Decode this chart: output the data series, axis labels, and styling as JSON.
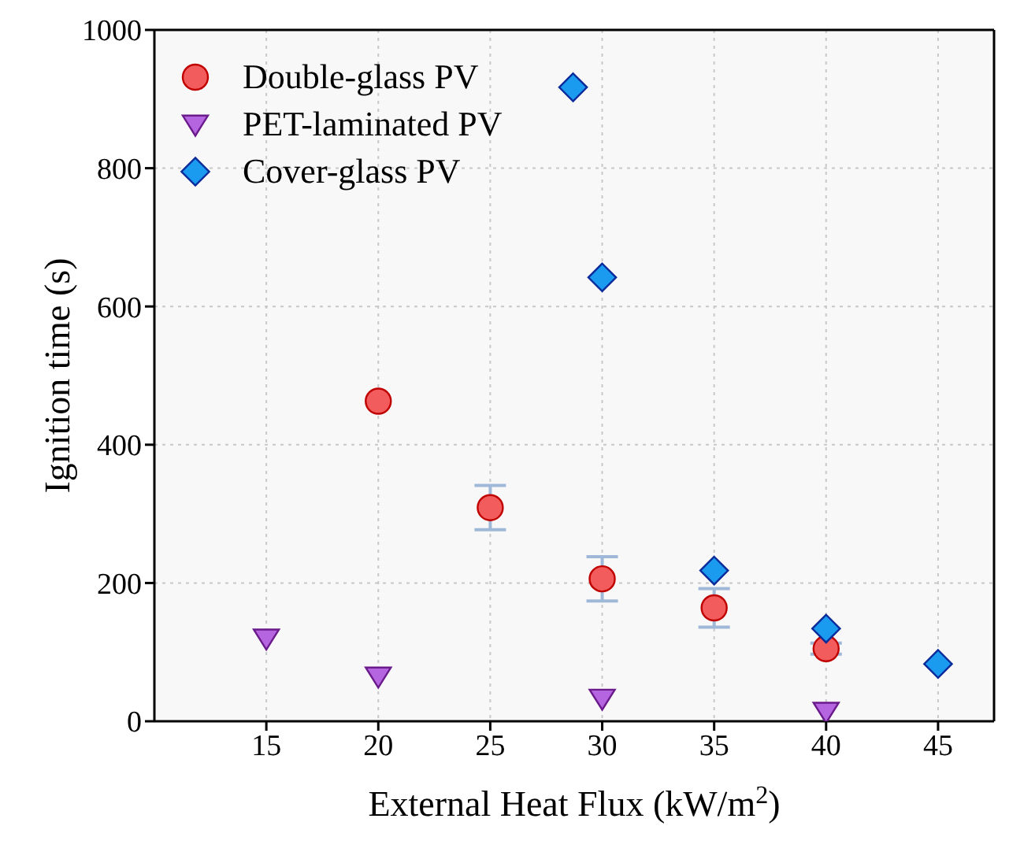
{
  "chart_data": {
    "type": "scatter",
    "xlabel": "External Heat Flux (kW/m$^{2}$)",
    "ylabel": "Ignition time (s)",
    "xlim": [
      10,
      47.5
    ],
    "xticks": [
      15,
      20,
      25,
      30,
      35,
      40,
      45
    ],
    "ylim": [
      0,
      1000
    ],
    "yticks": [
      0,
      200,
      400,
      600,
      800,
      1000
    ],
    "grid": true,
    "legend": "top left",
    "series": [
      {
        "name": "Double-glass PV",
        "color": "#f25c5c",
        "marker": "circle",
        "x": [
          20,
          25,
          30,
          35,
          40
        ],
        "values": [
          463,
          309,
          206,
          164,
          105
        ],
        "errors": [
          null,
          32,
          32,
          28,
          8
        ]
      },
      {
        "name": "PET-laminated PV",
        "color": "#b565e0",
        "marker": "triangle",
        "x": [
          15,
          20,
          30,
          40
        ],
        "values": [
          120,
          65,
          33,
          14
        ]
      },
      {
        "name": "Cover-glass PV",
        "color": "#1a9bf0",
        "marker": "diamond",
        "x": [
          28.7,
          30,
          35,
          40,
          45
        ],
        "values": [
          917,
          642,
          218,
          134,
          83
        ]
      }
    ]
  }
}
